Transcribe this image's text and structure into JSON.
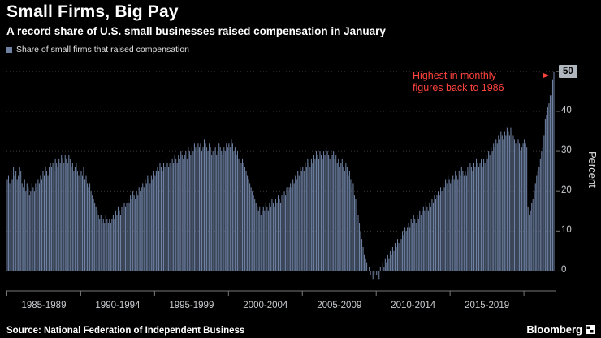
{
  "header": {
    "title": "Small Firms, Big Pay",
    "subtitle": "A record share of U.S. small businesses raised compensation in January"
  },
  "legend": {
    "label": "Share of small firms that raised compensation",
    "swatch_color": "#6e81a3"
  },
  "annotation": {
    "text_line1": "Highest in monthly",
    "text_line2": "figures back to 1986",
    "color": "#ff433d"
  },
  "yaxis": {
    "label": "Percent",
    "ticks": [
      0,
      10,
      20,
      30,
      40,
      50
    ],
    "last_value_badge": "50",
    "badge_bg": "#b0b6bd"
  },
  "xaxis": {
    "labels": [
      "1985-1989",
      "1990-1994",
      "1995-1999",
      "2000-2004",
      "2005-2009",
      "2010-2014",
      "2015-2019"
    ]
  },
  "footer": {
    "source": "Source: National Federation of Independent Business",
    "brand": "Bloomberg"
  },
  "chart_data": {
    "type": "bar",
    "title": "Small Firms, Big Pay",
    "subtitle": "A record share of U.S. small businesses raised compensation in January",
    "ylabel": "Percent",
    "xlabel": "",
    "ylim": [
      -5,
      52
    ],
    "yticks": [
      0,
      10,
      20,
      30,
      40,
      50
    ],
    "grid": "dotted-horizontal",
    "legend_position": "top-left",
    "bar_color": "#6e81a3",
    "x_start": "1985-01",
    "x_end": "2022-01",
    "interval": "monthly",
    "xtick_years": [
      1985,
      1990,
      1995,
      2000,
      2005,
      2010,
      2015,
      2020
    ],
    "xtick_range_labels": [
      "1985-1989",
      "1990-1994",
      "1995-1999",
      "2000-2004",
      "2005-2009",
      "2010-2014",
      "2015-2019"
    ],
    "last_value": 50,
    "annotation": "Highest in monthly figures back to 1986",
    "series": [
      {
        "name": "Share of small firms that raised compensation",
        "values": [
          23,
          24,
          22,
          25,
          23,
          26,
          24,
          25,
          23,
          24,
          26,
          25,
          22,
          21,
          23,
          20,
          22,
          21,
          19,
          20,
          22,
          21,
          20,
          22,
          21,
          23,
          22,
          24,
          23,
          25,
          24,
          26,
          25,
          24,
          26,
          27,
          26,
          27,
          25,
          28,
          27,
          26,
          28,
          27,
          29,
          28,
          27,
          29,
          28,
          27,
          29,
          28,
          26,
          27,
          25,
          26,
          27,
          25,
          24,
          26,
          25,
          24,
          26,
          23,
          24,
          22,
          21,
          22,
          20,
          19,
          18,
          17,
          16,
          15,
          14,
          13,
          14,
          12,
          13,
          12,
          14,
          13,
          12,
          13,
          12,
          13,
          14,
          13,
          15,
          14,
          16,
          15,
          14,
          16,
          15,
          17,
          16,
          17,
          18,
          17,
          19,
          18,
          20,
          19,
          18,
          20,
          19,
          21,
          20,
          21,
          22,
          21,
          23,
          22,
          24,
          23,
          22,
          24,
          23,
          25,
          24,
          25,
          26,
          25,
          27,
          26,
          25,
          27,
          26,
          28,
          27,
          26,
          27,
          26,
          28,
          27,
          29,
          28,
          27,
          29,
          28,
          30,
          29,
          28,
          29,
          30,
          28,
          31,
          30,
          29,
          31,
          30,
          32,
          31,
          30,
          32,
          31,
          32,
          30,
          31,
          33,
          32,
          31,
          30,
          32,
          31,
          29,
          30,
          30,
          31,
          29,
          30,
          32,
          31,
          30,
          29,
          31,
          30,
          32,
          31,
          32,
          31,
          33,
          32,
          30,
          31,
          29,
          30,
          28,
          29,
          27,
          28,
          27,
          26,
          25,
          24,
          23,
          22,
          21,
          20,
          19,
          18,
          17,
          16,
          15,
          16,
          14,
          15,
          16,
          15,
          17,
          16,
          15,
          17,
          16,
          18,
          17,
          16,
          18,
          17,
          19,
          18,
          17,
          19,
          18,
          20,
          19,
          21,
          20,
          21,
          22,
          21,
          23,
          22,
          24,
          23,
          25,
          24,
          26,
          25,
          26,
          25,
          27,
          26,
          28,
          27,
          26,
          28,
          27,
          29,
          28,
          30,
          29,
          28,
          30,
          29,
          28,
          30,
          29,
          31,
          30,
          29,
          28,
          30,
          29,
          30,
          28,
          29,
          27,
          28,
          26,
          27,
          28,
          26,
          25,
          27,
          26,
          24,
          25,
          23,
          21,
          22,
          19,
          18,
          16,
          14,
          12,
          10,
          8,
          6,
          4,
          3,
          2,
          0,
          1,
          -1,
          0,
          -2,
          -1,
          0,
          -1,
          0,
          -2,
          1,
          0,
          2,
          1,
          3,
          2,
          4,
          3,
          5,
          4,
          6,
          5,
          7,
          6,
          8,
          7,
          9,
          8,
          10,
          9,
          11,
          10,
          11,
          12,
          11,
          13,
          12,
          14,
          13,
          12,
          14,
          13,
          15,
          14,
          15,
          16,
          15,
          17,
          16,
          15,
          17,
          16,
          18,
          17,
          19,
          18,
          19,
          20,
          19,
          21,
          20,
          22,
          21,
          23,
          22,
          24,
          23,
          22,
          23,
          24,
          23,
          25,
          24,
          23,
          25,
          24,
          26,
          25,
          24,
          25,
          24,
          26,
          25,
          27,
          26,
          25,
          27,
          26,
          28,
          27,
          26,
          27,
          28,
          26,
          28,
          27,
          29,
          28,
          30,
          29,
          31,
          30,
          32,
          31,
          33,
          32,
          34,
          33,
          35,
          34,
          33,
          35,
          34,
          36,
          35,
          34,
          36,
          35,
          34,
          33,
          32,
          31,
          33,
          32,
          30,
          31,
          32,
          33,
          32,
          31,
          16,
          14,
          15,
          17,
          18,
          20,
          22,
          24,
          25,
          26,
          28,
          30,
          31,
          34,
          38,
          39,
          41,
          42,
          44,
          44,
          48,
          50
        ]
      }
    ]
  }
}
